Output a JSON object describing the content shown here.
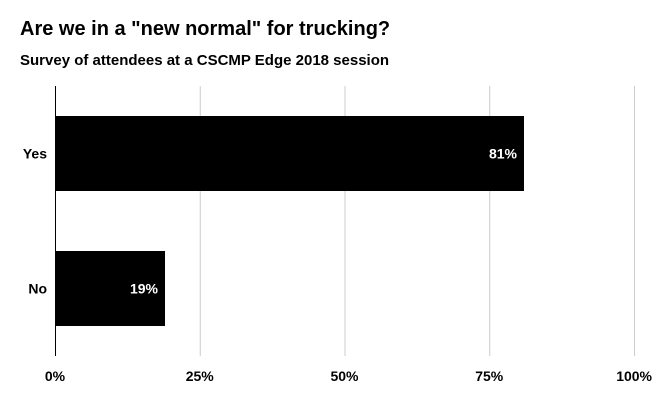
{
  "chart_data": {
    "type": "bar",
    "orientation": "horizontal",
    "title": "Are we in a \"new normal\" for trucking?",
    "subtitle": "Survey of attendees at a CSCMP Edge 2018 session",
    "categories": [
      "Yes",
      "No"
    ],
    "values": [
      81,
      19
    ],
    "data_labels": [
      "81%",
      "19%"
    ],
    "xlabel": "",
    "ylabel": "",
    "xlim": [
      0,
      100
    ],
    "x_ticks": [
      0,
      25,
      50,
      75,
      100
    ],
    "x_tick_labels": [
      "0%",
      "25%",
      "50%",
      "75%",
      "100%"
    ],
    "grid": true,
    "legend": "none",
    "colors": {
      "bar": "#000000",
      "grid": "#cccccc",
      "axis": "#000000",
      "data_label": "#ffffff"
    }
  }
}
